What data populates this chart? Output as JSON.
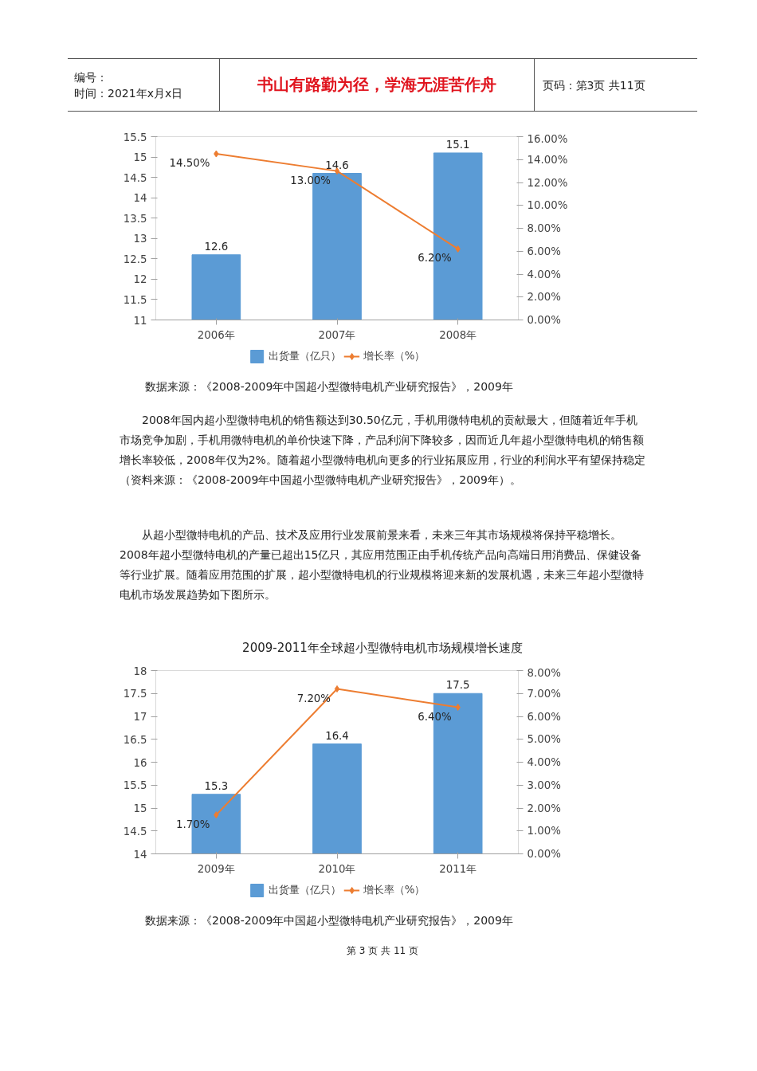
{
  "chart_data": [
    {
      "type": "bar",
      "categories": [
        "2006年",
        "2007年",
        "2008年"
      ],
      "series": [
        {
          "name": "出货量（亿只）",
          "color": "#5b9bd5",
          "values": [
            12.6,
            14.6,
            15.1
          ],
          "value_labels": [
            "12.6",
            "14.6",
            "15.1"
          ]
        },
        {
          "name": "增长率（%）",
          "type": "line",
          "axis": "y2",
          "color": "#ed7d31",
          "values": [
            14.5,
            13.0,
            6.2
          ],
          "value_labels": [
            "14.50%",
            "13.00%",
            "6.20%"
          ]
        }
      ],
      "ylim": [
        11,
        15.5
      ],
      "yticks": [
        11,
        11.5,
        12,
        12.5,
        13,
        13.5,
        14,
        14.5,
        15,
        15.5
      ],
      "y2lim": [
        0,
        16
      ],
      "y2ticks": [
        {
          "value": 0,
          "label": "0.00%"
        },
        {
          "value": 2,
          "label": "2.00%"
        },
        {
          "value": 4,
          "label": "4.00%"
        },
        {
          "value": 6,
          "label": "6.00%"
        },
        {
          "value": 8,
          "label": "8.00%"
        },
        {
          "value": 10,
          "label": "10.00%"
        },
        {
          "value": 12,
          "label": "12.00%"
        },
        {
          "value": 14,
          "label": "14.00%"
        },
        {
          "value": 16,
          "label": "16.00%"
        }
      ],
      "marker": "diamond",
      "legend": "bottom",
      "grid": false,
      "annotations": [
        "编号：",
        "时间：2021年x月x日",
        "书山有路勤为径，学海无涯苦作舟",
        "页码：第3页 共11页",
        "数据来源：《2008-2009年中国超小型微特电机产业研究报告》，2009年"
      ]
    },
    {
      "type": "bar",
      "title": "2009-2011年全球超小型微特电机市场规模增长速度",
      "categories": [
        "2009年",
        "2010年",
        "2011年"
      ],
      "series": [
        {
          "name": "出货量（亿只）",
          "color": "#5b9bd5",
          "values": [
            15.3,
            16.4,
            17.5
          ],
          "value_labels": [
            "15.3",
            "16.4",
            "17.5"
          ]
        },
        {
          "name": "增长率（%）",
          "type": "line",
          "axis": "y2",
          "color": "#ed7d31",
          "values": [
            1.7,
            7.2,
            6.4
          ],
          "value_labels": [
            "1.70%",
            "7.20%",
            "6.40%"
          ]
        }
      ],
      "ylim": [
        14,
        18
      ],
      "yticks": [
        14,
        14.5,
        15,
        15.5,
        16,
        16.5,
        17,
        17.5,
        18
      ],
      "y2lim": [
        0,
        8
      ],
      "y2ticks": [
        {
          "value": 0,
          "label": "0.00%"
        },
        {
          "value": 1,
          "label": "1.00%"
        },
        {
          "value": 2,
          "label": "2.00%"
        },
        {
          "value": 3,
          "label": "3.00%"
        },
        {
          "value": 4,
          "label": "4.00%"
        },
        {
          "value": 5,
          "label": "5.00%"
        },
        {
          "value": 6,
          "label": "6.00%"
        },
        {
          "value": 7,
          "label": "7.00%"
        },
        {
          "value": 8,
          "label": "8.00%"
        }
      ],
      "marker": "diamond",
      "legend": "bottom",
      "grid": false,
      "annotations": [
        "2008年国内超小型微特电机的销售额达到30.50亿元，手机用微特电机的贡献最大，但随着近年手机市场竞争加剧，手机用微特电机的单价快速下降，产品利润下降较多，因而近几年超小型微特电机的销售额增长率较低，2008年仅为2%。随着超小型微特电机向更多的行业拓展应用，行业的利润水平有望保持稳定（资料来源：《2008-2009年中国超小型微特电机产业研究报告》，2009年）。",
        "从超小型微特电机的产品、技术及应用行业发展前景来看，未来三年其市场规模将保持平稳增长。2008年超小型微特电机的产量已超出15亿只，其应用范围正由手机传统产品向高端日用消费品、保健设备等行业扩展。随着应用范围的扩展，超小型微特电机的行业规模将迎来新的发展机遇，未来三年超小型微特电机市场发展趋势如下图所示。",
        "数据来源：《2008-2009年中国超小型微特电机产业研究报告》，2009年",
        "第 3 页 共 11 页"
      ]
    }
  ]
}
